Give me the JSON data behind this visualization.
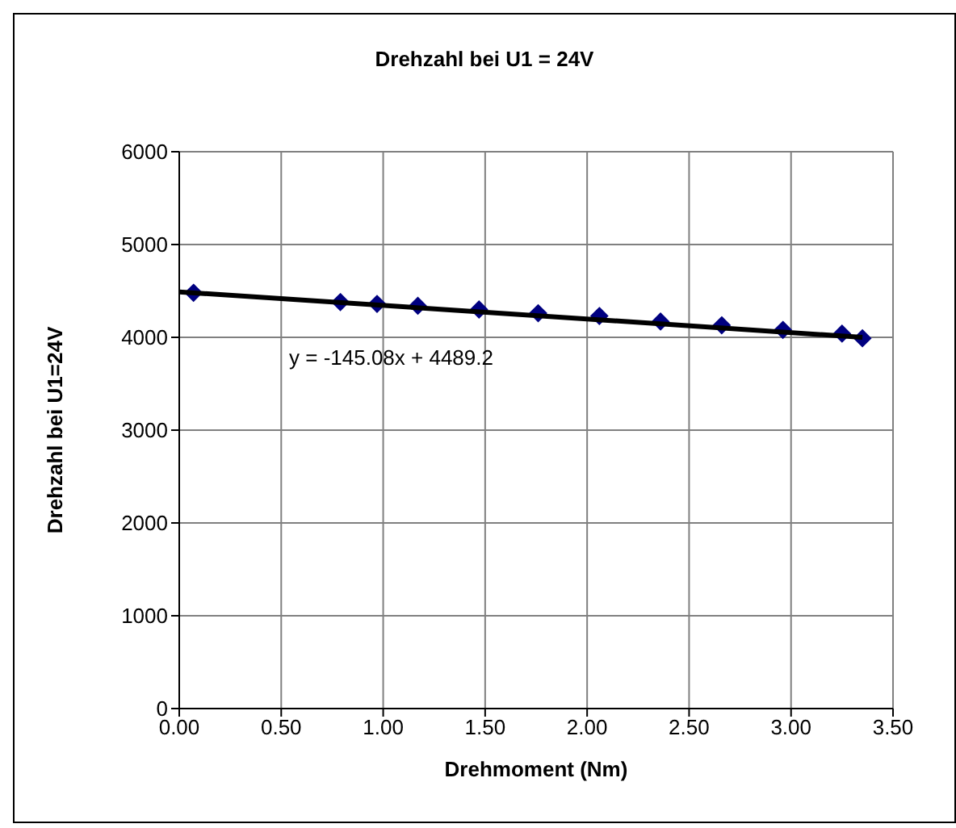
{
  "chart_data": {
    "type": "scatter",
    "title": "Drehzahl bei U1 = 24V",
    "xlabel": "Drehmoment (Nm)",
    "ylabel": "Drehzahl bei U1=24V",
    "series": [
      {
        "color": "#000080",
        "marker": "diamond",
        "x": [
          0.07,
          0.79,
          0.97,
          1.17,
          1.47,
          1.76,
          2.06,
          2.36,
          2.66,
          2.96,
          3.25,
          3.35
        ],
        "values": [
          4480,
          4380,
          4360,
          4340,
          4300,
          4260,
          4230,
          4170,
          4130,
          4080,
          4040,
          3990
        ]
      },
      {
        "type": "line",
        "color": "#000000",
        "marker": "none",
        "x": [
          0,
          3.35
        ],
        "values": [
          4490,
          4000
        ]
      }
    ],
    "annotations": [
      "y = -145.08x + 4489.2"
    ],
    "xlim": [
      0,
      3.5
    ],
    "xticks": [
      {
        "value": 0,
        "label": "0.00"
      },
      {
        "value": 0.5,
        "label": "0.50"
      },
      {
        "value": 1,
        "label": "1.00"
      },
      {
        "value": 1.5,
        "label": "1.50"
      },
      {
        "value": 2,
        "label": "2.00"
      },
      {
        "value": 2.5,
        "label": "2.50"
      },
      {
        "value": 3,
        "label": "3.00"
      },
      {
        "value": 3.5,
        "label": "3.50"
      }
    ],
    "ylim": [
      0,
      6000
    ],
    "yticks": [
      0,
      1000,
      2000,
      3000,
      4000,
      5000,
      6000
    ],
    "grid": true
  }
}
